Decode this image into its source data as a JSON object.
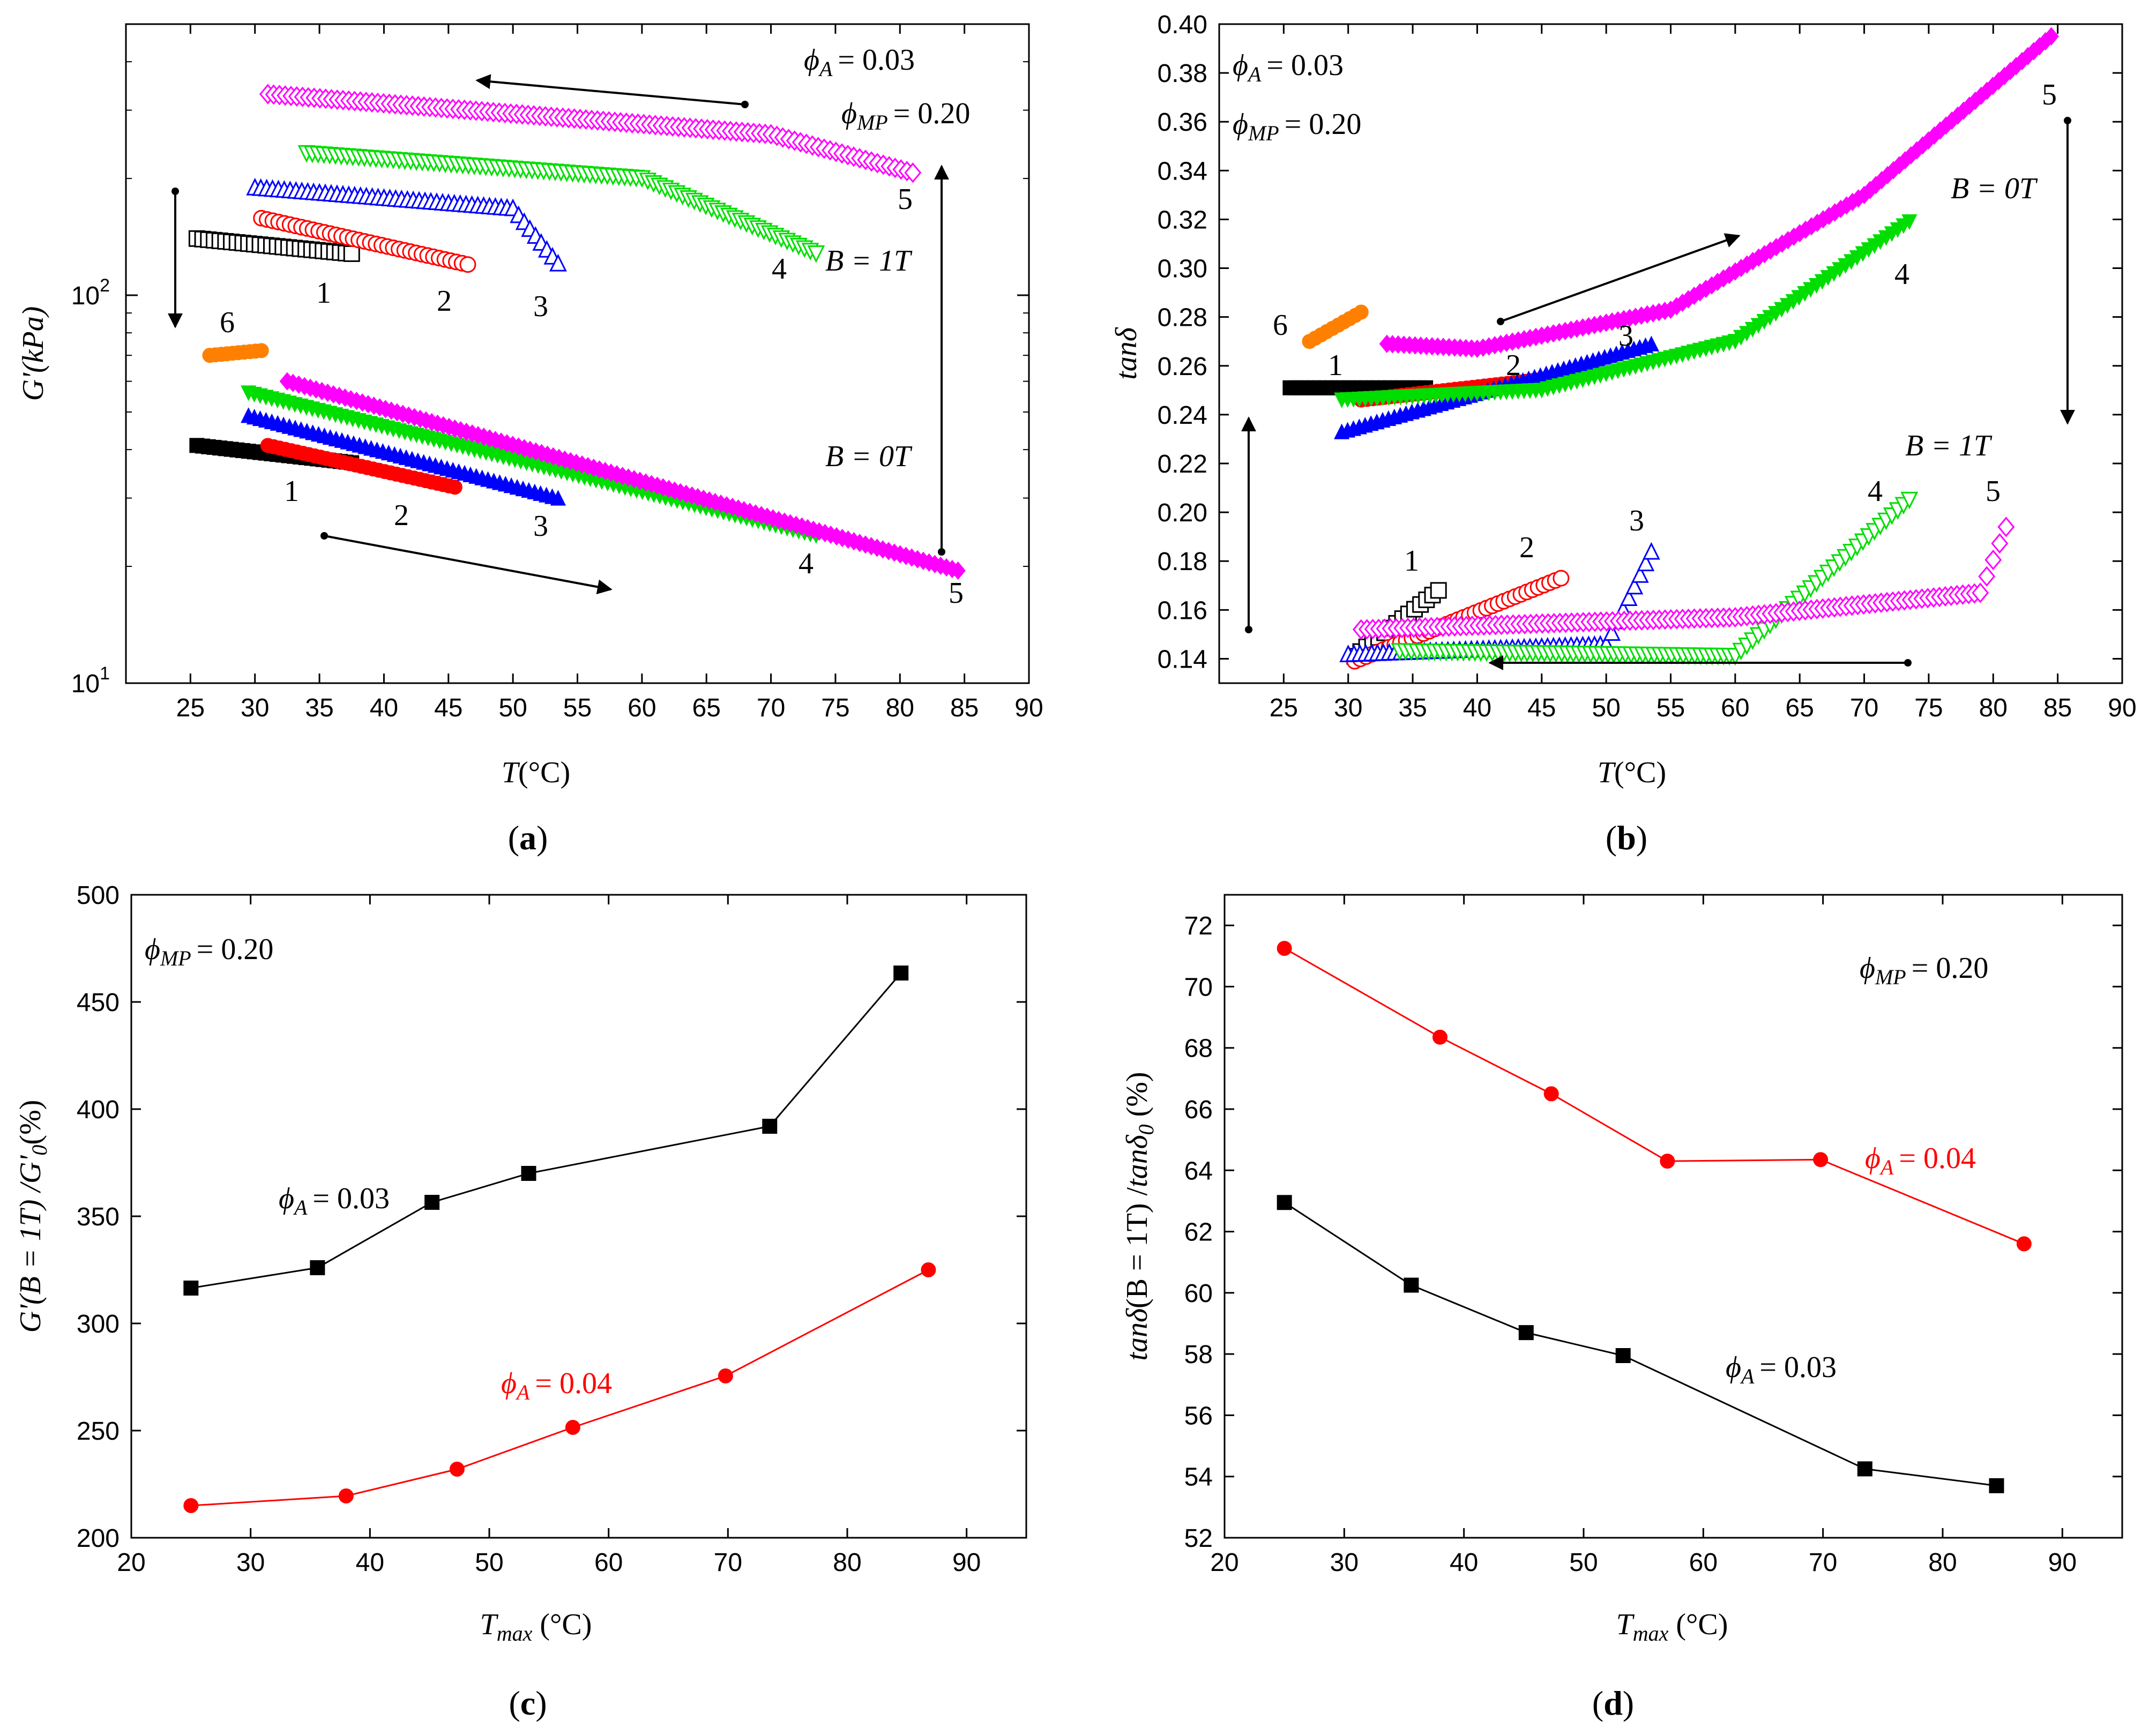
{
  "chart_data": [
    {
      "panel": "(a)",
      "type": "scatter",
      "xlabel_main": "T",
      "xlabel_unit": "(°C)",
      "ylabel": "G'(kPa)",
      "xlim": [
        20,
        90
      ],
      "xticks": [
        "25",
        "30",
        "35",
        "40",
        "45",
        "50",
        "55",
        "60",
        "65",
        "70",
        "75",
        "80",
        "85",
        "90"
      ],
      "yscale": "log",
      "ylim": [
        10,
        500
      ],
      "yticks": [
        {
          "value": 10,
          "base": "10",
          "exp": "1"
        },
        {
          "value": 100,
          "base": "10",
          "exp": "2"
        }
      ],
      "annotations": {
        "phiA": "= 0.03",
        "phiMP": "= 0.20",
        "b1": "B = 1T",
        "b0": "B = 0T"
      },
      "series": [
        {
          "name": "1",
          "field": "B = 1T",
          "color": "#000000",
          "marker": "square-open",
          "x": [
            25.5,
            37.5
          ],
          "y": [
            140,
            128
          ]
        },
        {
          "name": "2",
          "field": "B = 1T",
          "color": "#ff0000",
          "marker": "circle-open",
          "x": [
            30.5,
            46.5
          ],
          "y": [
            158,
            120
          ]
        },
        {
          "name": "3",
          "field": "B = 1T",
          "color": "#0000ff",
          "marker": "triangle-up-open",
          "x": [
            30,
            50,
            53.5
          ],
          "y": [
            190,
            168,
            121
          ]
        },
        {
          "name": "4",
          "field": "B = 1T",
          "color": "#00dd00",
          "marker": "triangle-down-open",
          "x": [
            34,
            60,
            73.5
          ],
          "y": [
            232,
            200,
            128
          ]
        },
        {
          "name": "5",
          "field": "B = 1T",
          "color": "#ff00ff",
          "marker": "diamond-open",
          "x": [
            31,
            70,
            81
          ],
          "y": [
            330,
            260,
            207
          ]
        },
        {
          "name": "6",
          "field": "transition",
          "color": "#ff8000",
          "marker": "circle",
          "x": [
            26.5,
            30.5
          ],
          "y": [
            70,
            72
          ]
        },
        {
          "name": "1",
          "field": "B = 0T",
          "color": "#000000",
          "marker": "square",
          "x": [
            25.5,
            37.5
          ],
          "y": [
            41,
            37
          ]
        },
        {
          "name": "2",
          "field": "B = 0T",
          "color": "#ff0000",
          "marker": "circle",
          "x": [
            31,
            45.5
          ],
          "y": [
            41,
            32
          ]
        },
        {
          "name": "3",
          "field": "B = 0T",
          "color": "#0000ff",
          "marker": "triangle-up",
          "x": [
            29.5,
            53.5
          ],
          "y": [
            49,
            30
          ]
        },
        {
          "name": "4",
          "field": "B = 0T",
          "color": "#00dd00",
          "marker": "triangle-down",
          "x": [
            29.5,
            73.5
          ],
          "y": [
            56,
            24
          ]
        },
        {
          "name": "5",
          "field": "B = 0T",
          "color": "#ff00ff",
          "marker": "diamond",
          "x": [
            32.5,
            84.5
          ],
          "y": [
            60,
            19.5
          ]
        }
      ]
    },
    {
      "panel": "(b)",
      "type": "scatter",
      "xlabel_main": "T",
      "xlabel_unit": "(°C)",
      "ylabel": "tanδ",
      "xlim": [
        20,
        90
      ],
      "xticks": [
        "25",
        "30",
        "35",
        "40",
        "45",
        "50",
        "55",
        "60",
        "65",
        "70",
        "75",
        "80",
        "85",
        "90"
      ],
      "ylim": [
        0.13,
        0.4
      ],
      "yticks": [
        "0.14",
        "0.16",
        "0.18",
        "0.20",
        "0.22",
        "0.24",
        "0.26",
        "0.28",
        "0.30",
        "0.32",
        "0.34",
        "0.36",
        "0.38",
        "0.40"
      ],
      "annotations": {
        "phiA": "= 0.03",
        "phiMP": "= 0.20",
        "b0": "B = 0T",
        "b1": "B = 1T"
      },
      "series": [
        {
          "name": "1",
          "field": "B = 0T",
          "color": "#000000",
          "marker": "square",
          "x": [
            25.5,
            36
          ],
          "y": [
            0.251,
            0.251
          ]
        },
        {
          "name": "2",
          "field": "B = 0T",
          "color": "#ff0000",
          "marker": "circle",
          "x": [
            31,
            46
          ],
          "y": [
            0.246,
            0.255
          ]
        },
        {
          "name": "3",
          "field": "B = 0T",
          "color": "#0000ff",
          "marker": "triangle-up",
          "x": [
            29.5,
            53.5
          ],
          "y": [
            0.233,
            0.269
          ]
        },
        {
          "name": "4",
          "field": "B = 0T",
          "color": "#00dd00",
          "marker": "triangle-down",
          "x": [
            29.5,
            45,
            60,
            73.5
          ],
          "y": [
            0.246,
            0.25,
            0.27,
            0.319
          ]
        },
        {
          "name": "5",
          "field": "B = 0T",
          "color": "#ff00ff",
          "marker": "diamond",
          "x": [
            33,
            40,
            55,
            70,
            84.5
          ],
          "y": [
            0.269,
            0.267,
            0.283,
            0.33,
            0.395
          ]
        },
        {
          "name": "6",
          "field": "transition",
          "color": "#ff8000",
          "marker": "circle",
          "x": [
            27,
            31
          ],
          "y": [
            0.27,
            0.282
          ]
        },
        {
          "name": "1",
          "field": "B = 1T",
          "color": "#000000",
          "marker": "square-open",
          "x": [
            30.5,
            37
          ],
          "y": [
            0.141,
            0.168
          ]
        },
        {
          "name": "2",
          "field": "B = 1T",
          "color": "#ff0000",
          "marker": "circle-open",
          "x": [
            30.5,
            46.5
          ],
          "y": [
            0.139,
            0.173
          ]
        },
        {
          "name": "3",
          "field": "B = 1T",
          "color": "#0000ff",
          "marker": "triangle-up-open",
          "x": [
            30,
            50,
            53.5
          ],
          "y": [
            0.142,
            0.146,
            0.184
          ]
        },
        {
          "name": "4",
          "field": "B = 1T",
          "color": "#00dd00",
          "marker": "triangle-down-open",
          "x": [
            34,
            60,
            73.5
          ],
          "y": [
            0.143,
            0.141,
            0.205
          ]
        },
        {
          "name": "5",
          "field": "B = 1T",
          "color": "#ff00ff",
          "marker": "diamond-open",
          "x": [
            31,
            60,
            79,
            81
          ],
          "y": [
            0.152,
            0.157,
            0.167,
            0.194
          ]
        }
      ]
    },
    {
      "panel": "(c)",
      "type": "line",
      "xlabel_main": "T",
      "xlabel_sub": "max",
      "xlabel_unit": " (°C)",
      "ylabel": "G'(B = 1T) /G'0(%)",
      "xlim": [
        20,
        95
      ],
      "xticks": [
        "20",
        "30",
        "40",
        "50",
        "60",
        "70",
        "80",
        "90"
      ],
      "ylim": [
        200,
        500
      ],
      "yticks": [
        "200",
        "250",
        "300",
        "350",
        "400",
        "450",
        "500"
      ],
      "annotations": {
        "phiMP": "= 0.20"
      },
      "series": [
        {
          "name": "φA = 0.03",
          "label_value": "= 0.03",
          "color": "#000000",
          "marker": "square",
          "x": [
            25,
            35.6,
            45.2,
            53.3,
            73.5,
            84.5
          ],
          "y": [
            316.5,
            326,
            356.5,
            370,
            392,
            463.5
          ]
        },
        {
          "name": "φA = 0.04",
          "label_value": "= 0.04",
          "color": "#ff0000",
          "marker": "circle",
          "x": [
            25,
            38,
            47.3,
            57,
            69.8,
            86.8
          ],
          "y": [
            215,
            219.5,
            232,
            251.5,
            275.5,
            325
          ]
        }
      ]
    },
    {
      "panel": "(d)",
      "type": "line",
      "xlabel_main": "T",
      "xlabel_sub": "max",
      "xlabel_unit": " (°C)",
      "ylabel": "tanδ(B = 1T) /tanδ0 (%)",
      "xlim": [
        20,
        95
      ],
      "xticks": [
        "20",
        "30",
        "40",
        "50",
        "60",
        "70",
        "80",
        "90"
      ],
      "ylim": [
        52,
        73
      ],
      "yticks": [
        "52",
        "54",
        "56",
        "58",
        "60",
        "62",
        "64",
        "66",
        "68",
        "70",
        "72"
      ],
      "annotations": {
        "phiMP": "= 0.20"
      },
      "series": [
        {
          "name": "φA = 0.04",
          "label_value": "= 0.04",
          "color": "#ff0000",
          "marker": "circle",
          "x": [
            25,
            38,
            47.3,
            57,
            69.8,
            86.8
          ],
          "y": [
            71.25,
            68.35,
            66.5,
            64.3,
            64.35,
            61.6
          ]
        },
        {
          "name": "φA = 0.03",
          "label_value": "= 0.03",
          "color": "#000000",
          "marker": "square",
          "x": [
            25,
            35.6,
            45.2,
            53.3,
            73.5,
            84.5
          ],
          "y": [
            62.95,
            60.25,
            58.7,
            57.95,
            54.25,
            53.7
          ]
        }
      ]
    }
  ]
}
